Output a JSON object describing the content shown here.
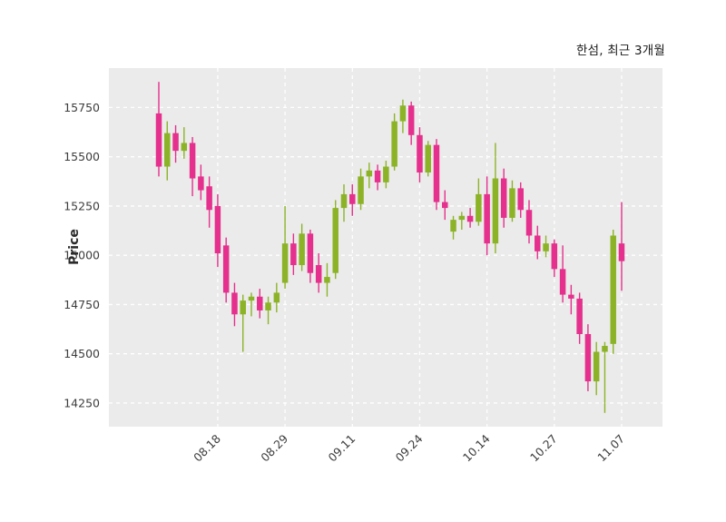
{
  "chart_data": {
    "type": "candlestick",
    "title": "한섬, 최근 3개월",
    "ylabel": "Price",
    "plot_bg_color": "#ebebeb",
    "figure_bg_color": "#ffffff",
    "grid_color": "#ffffff",
    "grid_style": "dashed",
    "up_color": "#8cb327",
    "down_color": "#e5308d",
    "ylim": [
      14130,
      15950
    ],
    "y_ticks": [
      14250,
      14500,
      14750,
      15000,
      15250,
      15500,
      15750
    ],
    "x_ticks": [
      {
        "label": "08.18",
        "index": 7
      },
      {
        "label": "08.29",
        "index": 15
      },
      {
        "label": "09.11",
        "index": 23
      },
      {
        "label": "09.24",
        "index": 31
      },
      {
        "label": "10.14",
        "index": 39
      },
      {
        "label": "10.27",
        "index": 47
      },
      {
        "label": "11.07",
        "index": 55
      }
    ],
    "ohlc_format": [
      "open",
      "high",
      "low",
      "close"
    ],
    "candles": [
      [
        15720,
        15880,
        15400,
        15450
      ],
      [
        15450,
        15680,
        15380,
        15620
      ],
      [
        15620,
        15660,
        15470,
        15530
      ],
      [
        15530,
        15650,
        15490,
        15570
      ],
      [
        15570,
        15600,
        15300,
        15390
      ],
      [
        15400,
        15460,
        15280,
        15330
      ],
      [
        15350,
        15400,
        15140,
        15230
      ],
      [
        15250,
        15310,
        14940,
        15010
      ],
      [
        15050,
        15090,
        14760,
        14810
      ],
      [
        14810,
        14860,
        14640,
        14700
      ],
      [
        14700,
        14800,
        14510,
        14770
      ],
      [
        14770,
        14810,
        14690,
        14790
      ],
      [
        14790,
        14830,
        14680,
        14720
      ],
      [
        14720,
        14790,
        14650,
        14760
      ],
      [
        14760,
        14860,
        14710,
        14810
      ],
      [
        14860,
        15250,
        14830,
        15060
      ],
      [
        15060,
        15110,
        14900,
        14950
      ],
      [
        14950,
        15160,
        14920,
        15110
      ],
      [
        15110,
        15130,
        14860,
        14910
      ],
      [
        14950,
        15010,
        14810,
        14860
      ],
      [
        14860,
        14960,
        14790,
        14890
      ],
      [
        14910,
        15280,
        14880,
        15240
      ],
      [
        15240,
        15360,
        15170,
        15310
      ],
      [
        15310,
        15360,
        15200,
        15260
      ],
      [
        15260,
        15440,
        15230,
        15400
      ],
      [
        15400,
        15470,
        15340,
        15430
      ],
      [
        15430,
        15460,
        15330,
        15370
      ],
      [
        15370,
        15480,
        15340,
        15450
      ],
      [
        15450,
        15720,
        15430,
        15680
      ],
      [
        15680,
        15790,
        15620,
        15760
      ],
      [
        15760,
        15780,
        15560,
        15610
      ],
      [
        15610,
        15650,
        15370,
        15420
      ],
      [
        15420,
        15580,
        15400,
        15560
      ],
      [
        15560,
        15590,
        15230,
        15270
      ],
      [
        15270,
        15330,
        15180,
        15240
      ],
      [
        15120,
        15200,
        15080,
        15180
      ],
      [
        15180,
        15220,
        15130,
        15200
      ],
      [
        15200,
        15240,
        15140,
        15170
      ],
      [
        15170,
        15390,
        15150,
        15310
      ],
      [
        15310,
        15400,
        15000,
        15060
      ],
      [
        15060,
        15570,
        15010,
        15390
      ],
      [
        15390,
        15440,
        15140,
        15190
      ],
      [
        15190,
        15380,
        15170,
        15340
      ],
      [
        15340,
        15370,
        15190,
        15230
      ],
      [
        15230,
        15280,
        15060,
        15100
      ],
      [
        15100,
        15150,
        14980,
        15020
      ],
      [
        15020,
        15100,
        14990,
        15060
      ],
      [
        15060,
        15080,
        14890,
        14930
      ],
      [
        14930,
        15050,
        14760,
        14800
      ],
      [
        14800,
        14850,
        14700,
        14780
      ],
      [
        14780,
        14810,
        14550,
        14600
      ],
      [
        14600,
        14650,
        14310,
        14360
      ],
      [
        14360,
        14560,
        14290,
        14510
      ],
      [
        14510,
        14560,
        14200,
        14540
      ],
      [
        14550,
        15130,
        14500,
        15100
      ],
      [
        15060,
        15270,
        14820,
        14970
      ]
    ]
  }
}
